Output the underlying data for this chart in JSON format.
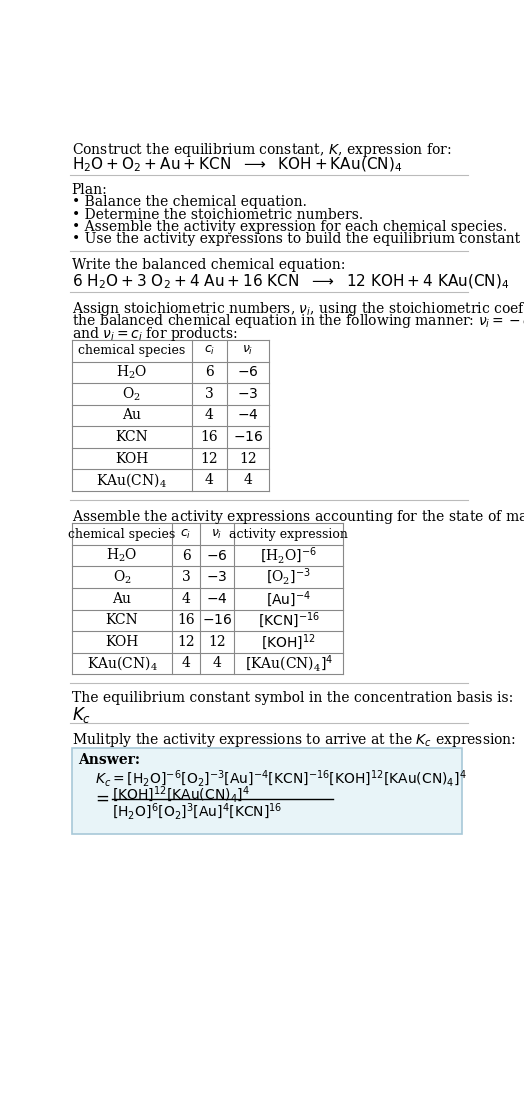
{
  "bg_color": "#ffffff",
  "text_color": "#000000",
  "plan_items": [
    "• Balance the chemical equation.",
    "• Determine the stoichiometric numbers.",
    "• Assemble the activity expression for each chemical species.",
    "• Use the activity expressions to build the equilibrium constant expression."
  ],
  "answer_box_color": "#e8f4f8",
  "answer_box_border": "#a8c8d8"
}
